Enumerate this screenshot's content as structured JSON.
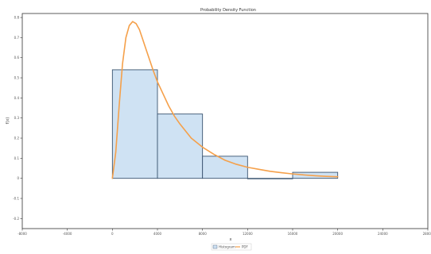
{
  "chart_data": {
    "type": "bar",
    "title": "Probability Density Function",
    "xlabel": "x",
    "ylabel": "f(x)",
    "xlim": [
      -8000,
      28000
    ],
    "ylim": [
      -0.25,
      0.82
    ],
    "x_ticks": [
      -8000,
      -4000,
      0,
      4000,
      8000,
      12000,
      16000,
      20000,
      24000,
      28000
    ],
    "y_ticks": [
      -0.2,
      -0.1,
      0,
      0.1,
      0.2,
      0.3,
      0.4,
      0.5,
      0.6,
      0.7,
      0.8
    ],
    "x_tick_labels": [
      "-8000",
      "-4000",
      "0",
      "4000",
      "8000",
      "12000",
      "16000",
      "20000",
      "24000",
      "28000"
    ],
    "y_tick_labels": [
      "-0.2",
      "-0.1",
      "0",
      "0.1",
      "0.2",
      "0.3",
      "0.4",
      "0.5",
      "0.6",
      "0.7",
      "0.8"
    ],
    "bars": [
      {
        "x0": 0,
        "x1": 4000,
        "value": 0.54
      },
      {
        "x0": 4000,
        "x1": 8000,
        "value": 0.32
      },
      {
        "x0": 8000,
        "x1": 12000,
        "value": 0.11
      },
      {
        "x0": 12000,
        "x1": 16000,
        "value": 0.0
      },
      {
        "x0": 16000,
        "x1": 20000,
        "value": 0.03
      }
    ],
    "curve": {
      "x": [
        0,
        300,
        600,
        900,
        1200,
        1500,
        1800,
        2100,
        2400,
        2700,
        3000,
        3300,
        3600,
        4000,
        4500,
        5000,
        5500,
        6000,
        7000,
        8000,
        9000,
        10000,
        11000,
        12000,
        13000,
        14000,
        15000,
        16000,
        17000,
        18000,
        19000,
        20000
      ],
      "y": [
        0.0,
        0.13,
        0.36,
        0.57,
        0.7,
        0.76,
        0.78,
        0.77,
        0.74,
        0.69,
        0.64,
        0.59,
        0.54,
        0.48,
        0.42,
        0.36,
        0.31,
        0.27,
        0.2,
        0.155,
        0.12,
        0.09,
        0.07,
        0.055,
        0.045,
        0.035,
        0.028,
        0.022,
        0.017,
        0.013,
        0.01,
        0.008
      ]
    },
    "grid": false,
    "legend": {
      "placement": "bottom-center",
      "entries": [
        {
          "label": "Histogram",
          "color": "#cfe2f3"
        },
        {
          "label": "PDF",
          "color": "#f5a04a"
        }
      ]
    },
    "colors": {
      "bar_fill": "#cfe2f3",
      "bar_stroke": "#3a5470",
      "curve": "#f5a04a",
      "axis": "#333333"
    }
  }
}
